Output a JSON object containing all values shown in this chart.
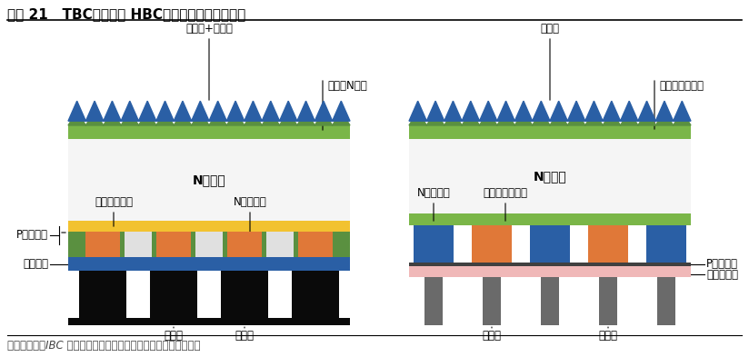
{
  "title": "图表 21   TBC（左）与 HBC（右）电池结构示意图",
  "footer": "资料来源：《IBC 太阳电池的研究进展》（席珍珍等），平安银行",
  "background_color": "#ffffff",
  "title_fontsize": 11,
  "footer_fontsize": 8.5,
  "left_cell": {
    "label_top": "氧化铝+氮化硅",
    "label_diffusion": "扩散（N型）",
    "label_wafer": "N型硅片",
    "label_p_poly": "P型多晶硅",
    "label_tunnel": "隧穿氧化硅层",
    "label_n_poly": "N型多晶硅",
    "label_sinx": "氮化硅层",
    "label_pos": "正电极",
    "label_neg": "负电极",
    "colors": {
      "zigzag_blue": "#2a5fa5",
      "zigzag_green": "#5a9040",
      "diffusion_green": "#7ab648",
      "wafer": "#f5f5f5",
      "tunnel_oxide": "#f2c230",
      "p_poly_orange": "#e07838",
      "sinx_green": "#5a9040",
      "sinx_blue": "#2a5fa5",
      "electrode_black": "#0a0a0a",
      "electrode_blue": "#2a5fa5",
      "gap_white": "#e8e8e8"
    }
  },
  "right_cell": {
    "label_top": "氮化硅",
    "label_intrinsic": "本征氢化非晶硅",
    "label_wafer": "N型硅片",
    "label_n_amor": "N型非晶硅",
    "label_i_amor": "本征氢化非晶硅",
    "label_p_amor": "P型非晶硅",
    "label_tco": "透明导电膜",
    "label_neg": "负电极",
    "label_pos": "正电极",
    "colors": {
      "zigzag_blue": "#2a5fa5",
      "zigzag_green": "#5a9040",
      "intrinsic_green": "#7ab648",
      "wafer": "#f5f5f5",
      "n_amor_blue": "#2a5fa5",
      "i_amor_orange": "#e07838",
      "p_amor_blue": "#2a5fa5",
      "tco_pink": "#f0b8b8",
      "electrode_gray": "#6a6a6a"
    }
  }
}
